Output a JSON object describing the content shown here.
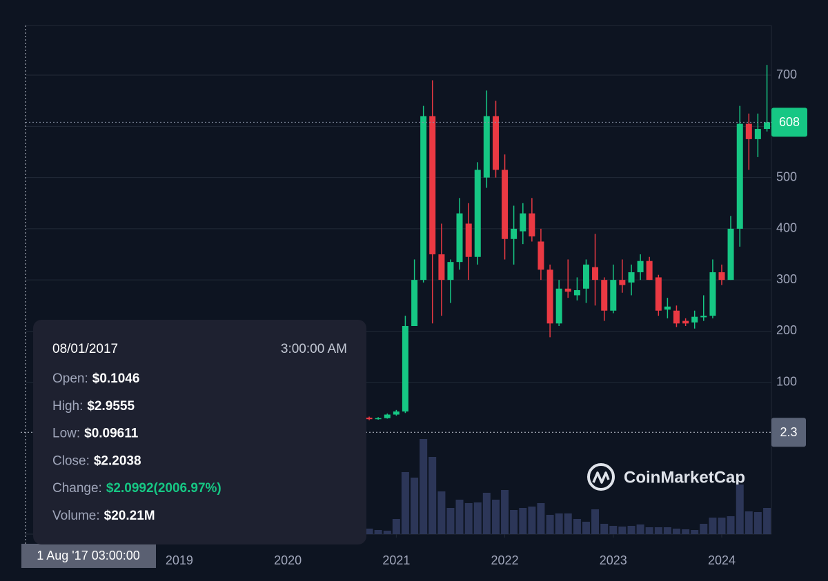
{
  "chart_data": {
    "type": "candlestick",
    "x": [
      2020.75,
      2020.833,
      2020.917,
      2021,
      2021.083,
      2021.167,
      2021.25,
      2021.333,
      2021.417,
      2021.5,
      2021.583,
      2021.667,
      2021.75,
      2021.833,
      2021.917,
      2022,
      2022.083,
      2022.167,
      2022.25,
      2022.333,
      2022.417,
      2022.5,
      2022.583,
      2022.667,
      2022.75,
      2022.833,
      2022.917,
      2023,
      2023.083,
      2023.167,
      2023.25,
      2023.333,
      2023.417,
      2023.5,
      2023.583,
      2023.667,
      2023.75,
      2023.833,
      2023.917,
      2024,
      2024.083,
      2024.167,
      2024.25,
      2024.333,
      2024.417
    ],
    "open": [
      31,
      28,
      30,
      37,
      43,
      210,
      300,
      620,
      350,
      300,
      335,
      410,
      345,
      500,
      620,
      515,
      380,
      395,
      430,
      375,
      320,
      215,
      283,
      270,
      283,
      325,
      300,
      240,
      300,
      295,
      315,
      337,
      305,
      242,
      240,
      220,
      217,
      227,
      230,
      315,
      300,
      400,
      605,
      575,
      595
    ],
    "high": [
      33,
      32,
      39,
      46,
      230,
      340,
      640,
      690,
      410,
      340,
      460,
      450,
      530,
      670,
      650,
      545,
      445,
      450,
      460,
      400,
      330,
      300,
      340,
      305,
      340,
      390,
      305,
      330,
      340,
      330,
      350,
      345,
      310,
      265,
      250,
      225,
      240,
      270,
      340,
      330,
      425,
      640,
      625,
      625,
      720
    ],
    "low": [
      26,
      27,
      29,
      35,
      40,
      210,
      295,
      215,
      230,
      255,
      320,
      300,
      330,
      480,
      500,
      340,
      330,
      370,
      375,
      300,
      188,
      210,
      265,
      260,
      255,
      250,
      220,
      235,
      275,
      270,
      300,
      300,
      230,
      225,
      208,
      210,
      205,
      220,
      225,
      290,
      300,
      365,
      515,
      540,
      590
    ],
    "close": [
      28,
      30,
      37,
      43,
      210,
      300,
      620,
      350,
      300,
      335,
      430,
      345,
      515,
      620,
      515,
      380,
      400,
      430,
      385,
      320,
      215,
      283,
      277,
      280,
      330,
      300,
      240,
      300,
      290,
      315,
      337,
      300,
      240,
      248,
      215,
      215,
      228,
      230,
      315,
      300,
      400,
      605,
      575,
      595,
      608
    ],
    "volume": [
      8,
      6,
      5,
      22,
      90,
      82,
      138,
      112,
      62,
      38,
      50,
      45,
      46,
      60,
      50,
      64,
      35,
      38,
      40,
      45,
      28,
      30,
      30,
      22,
      18,
      36,
      15,
      12,
      11,
      12,
      14,
      10,
      10,
      10,
      8,
      7,
      6,
      15,
      24,
      24,
      26,
      72,
      33,
      32,
      38
    ],
    "up_color": "#16c784",
    "down_color": "#ea3943",
    "volume_color": "#2c3658",
    "xlim": [
      2017.582,
      2024.458
    ],
    "xticks": [
      2019,
      2020,
      2021,
      2022,
      2023,
      2024
    ],
    "ylim": [
      0,
      797
    ],
    "yticks": [
      100,
      200,
      300,
      400,
      500,
      600,
      700
    ],
    "volume_lim": [
      0,
      160
    ],
    "grid": true,
    "last_price": 608,
    "crosshair_price": 2.3,
    "crosshair_label": "1 Aug '17 03:00:00",
    "watermark": "CoinMarketCap"
  },
  "tooltip": {
    "date": "08/01/2017",
    "time": "3:00:00 AM",
    "rows": [
      {
        "label": "Open:",
        "value": "$0.1046"
      },
      {
        "label": "High:",
        "value": "$2.9555"
      },
      {
        "label": "Low:",
        "value": "$0.09611"
      },
      {
        "label": "Close:",
        "value": "$2.2038"
      },
      {
        "label": "Change:",
        "value": "$2.0992(2006.97%)",
        "color": "#16c784"
      },
      {
        "label": "Volume:",
        "value": "$20.21M"
      }
    ]
  }
}
